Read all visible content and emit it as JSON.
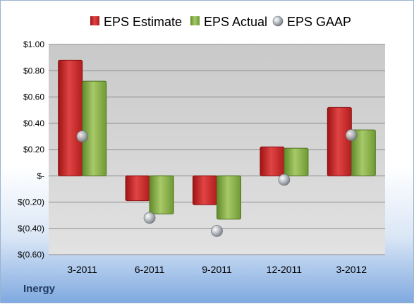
{
  "chart_data": {
    "type": "bar",
    "categories": [
      "3-2011",
      "6-2011",
      "9-2011",
      "12-2011",
      "3-2012"
    ],
    "series": [
      {
        "name": "EPS Estimate",
        "kind": "bar",
        "color": "#cc2a2a",
        "values": [
          0.88,
          -0.19,
          -0.22,
          0.22,
          0.52
        ]
      },
      {
        "name": "EPS Actual",
        "kind": "bar",
        "color": "#8bb04a",
        "values": [
          0.72,
          -0.29,
          -0.33,
          0.21,
          0.35
        ]
      },
      {
        "name": "EPS GAAP",
        "kind": "marker",
        "color": "#b8bcc2",
        "values": [
          0.3,
          -0.32,
          -0.42,
          -0.03,
          0.31
        ]
      }
    ],
    "ylim": [
      -0.6,
      1.0
    ],
    "yticks": [
      {
        "value": 1.0,
        "label": "$1.00"
      },
      {
        "value": 0.8,
        "label": "$0.80"
      },
      {
        "value": 0.6,
        "label": "$0.60"
      },
      {
        "value": 0.4,
        "label": "$0.40"
      },
      {
        "value": 0.2,
        "label": "$0.20"
      },
      {
        "value": 0.0,
        "label": "$-"
      },
      {
        "value": -0.2,
        "label": "$(0.20)"
      },
      {
        "value": -0.4,
        "label": "$(0.40)"
      },
      {
        "value": -0.6,
        "label": "$(0.60)"
      }
    ],
    "grid": true,
    "legend": "top"
  },
  "footer": {
    "label": "Inergy"
  }
}
